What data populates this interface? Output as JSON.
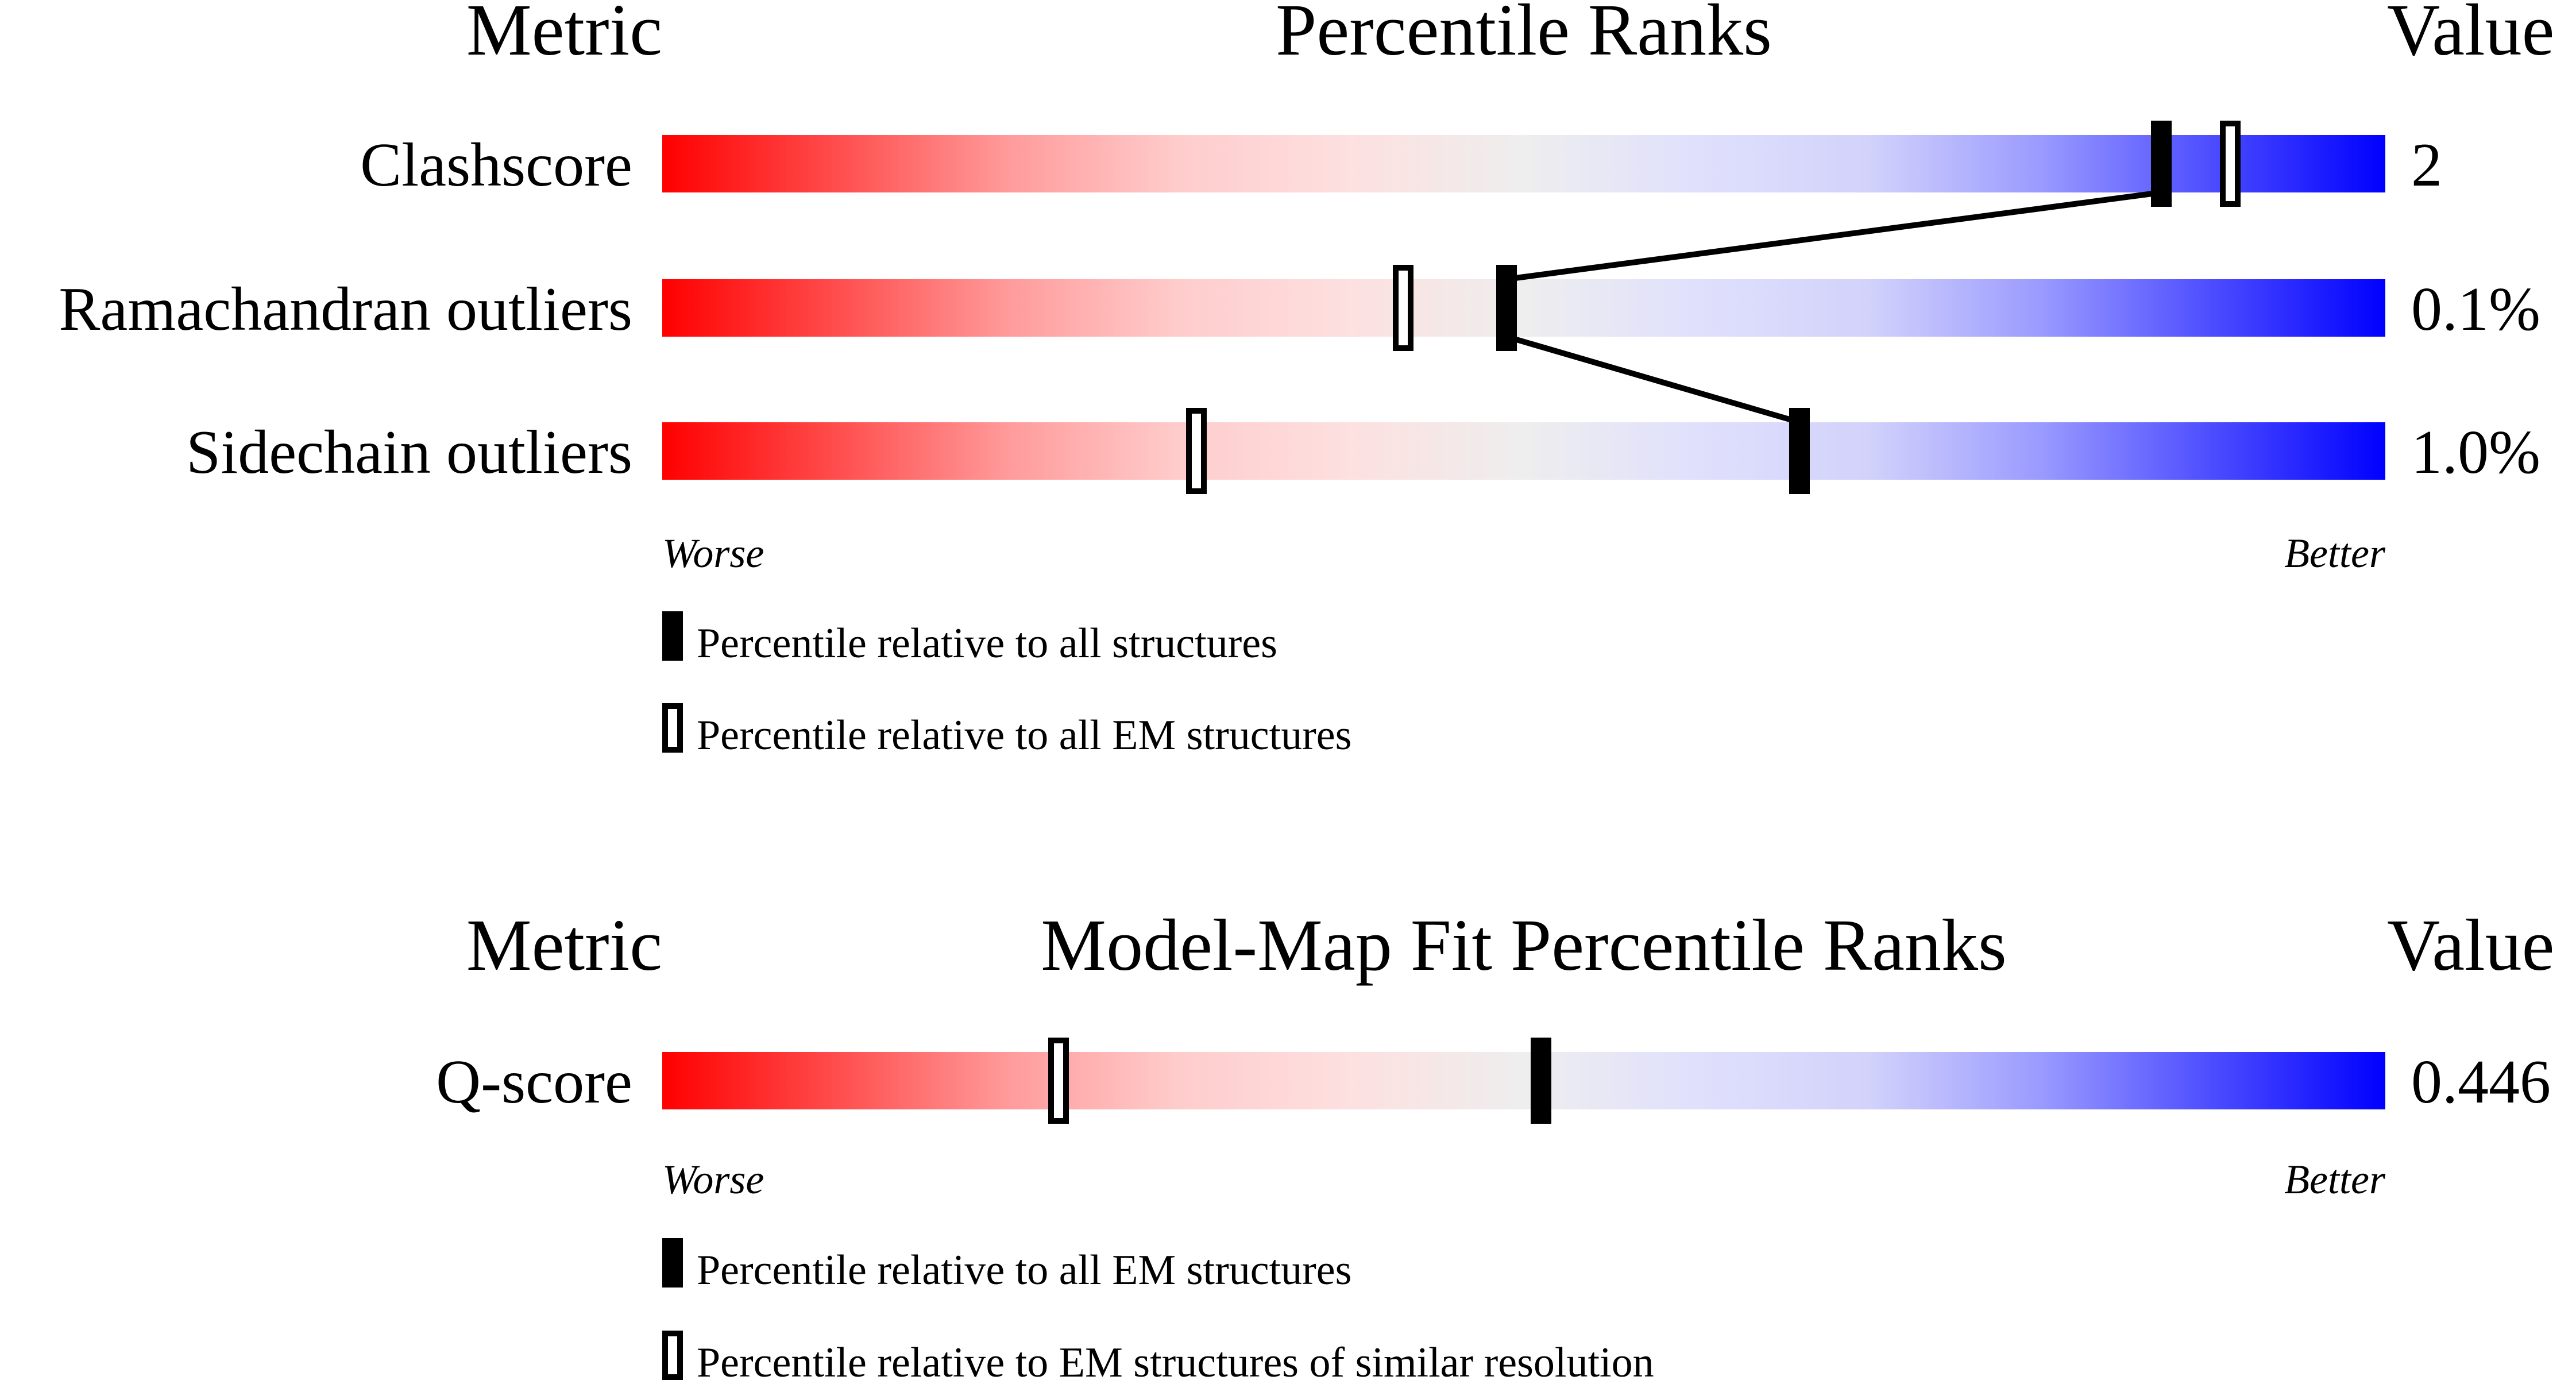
{
  "chart_data": [
    {
      "type": "percentile-slider",
      "headers": {
        "metric": "Metric",
        "title": "Percentile Ranks",
        "value": "Value"
      },
      "axis": {
        "worse": "Worse",
        "better": "Better",
        "range": [
          0,
          100
        ]
      },
      "legend": {
        "filled": "Percentile relative to all structures",
        "open": "Percentile relative to all EM structures"
      },
      "rows": [
        {
          "metric": "Clashscore",
          "value": "2",
          "filled_percentile": 87,
          "open_percentile": 91
        },
        {
          "metric": "Ramachandran outliers",
          "value": "0.1%",
          "filled_percentile": 49,
          "open_percentile": 43
        },
        {
          "metric": "Sidechain outliers",
          "value": "1.0%",
          "filled_percentile": 66,
          "open_percentile": 31
        }
      ],
      "connect_filled_markers": true
    },
    {
      "type": "percentile-slider",
      "headers": {
        "metric": "Metric",
        "title": "Model-Map Fit Percentile Ranks",
        "value": "Value"
      },
      "axis": {
        "worse": "Worse",
        "better": "Better",
        "range": [
          0,
          100
        ]
      },
      "legend": {
        "filled": "Percentile relative to all EM structures",
        "open": "Percentile relative to EM structures of similar resolution"
      },
      "rows": [
        {
          "metric": "Q-score",
          "value": "0.446",
          "filled_percentile": 51,
          "open_percentile": 23
        }
      ],
      "connect_filled_markers": false
    }
  ],
  "colors": {
    "worse": "#ff0000",
    "middle": "#eeeeee",
    "better": "#0000ff",
    "marker": "#000000"
  }
}
